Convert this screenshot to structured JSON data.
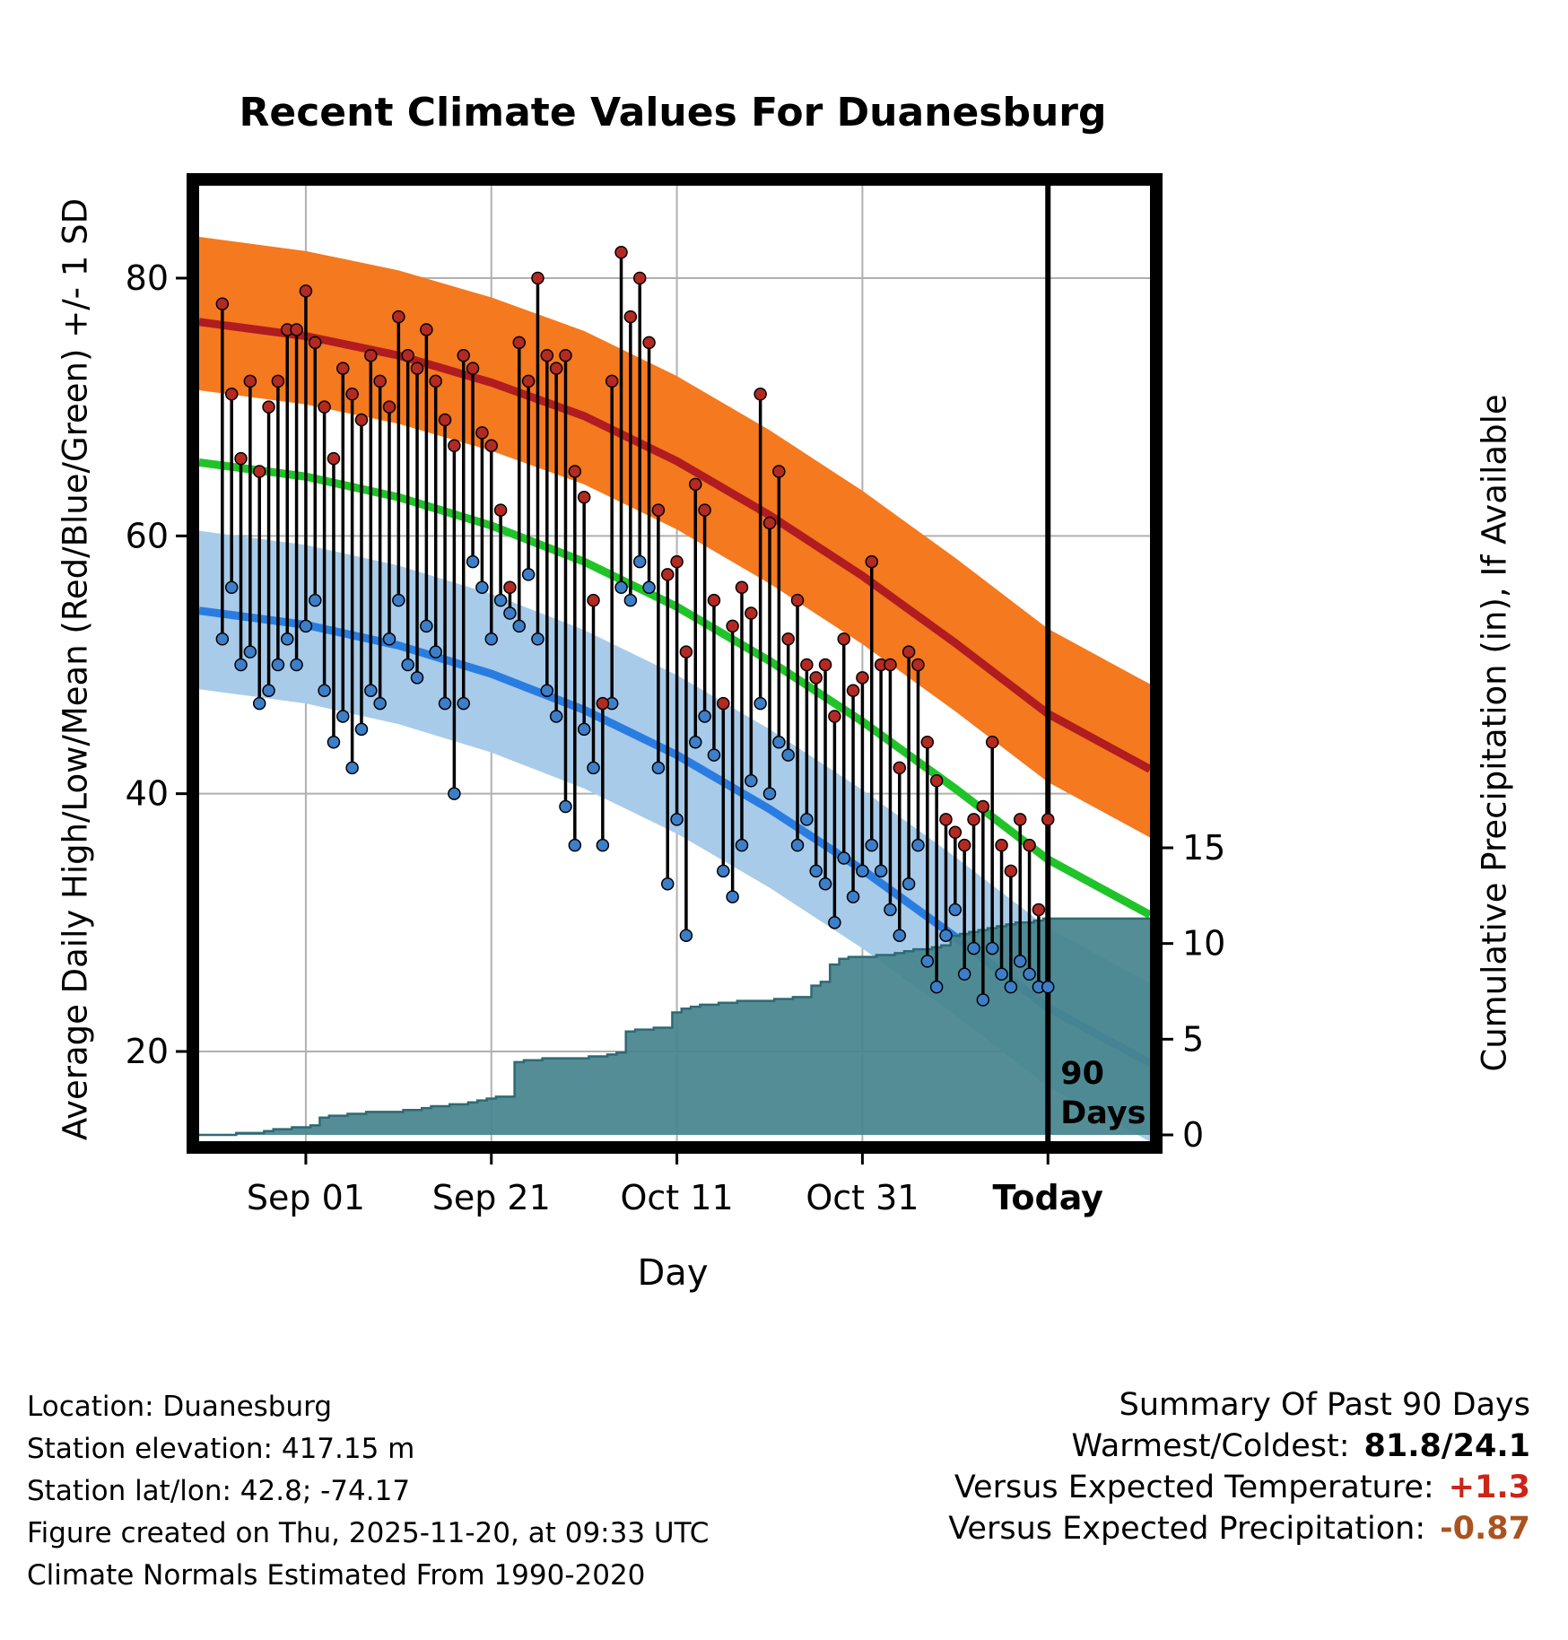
{
  "title": "Recent Climate Values For Duanesburg",
  "axes": {
    "left_label": "Average Daily High/Low/Mean (Red/Blue/Green) +/- 1 SD",
    "right_label": "Cumulative Precipitation (in), If Available",
    "x_label": "Day",
    "left_ticks": [
      20,
      40,
      60,
      80
    ],
    "right_ticks": [
      0,
      5,
      10,
      15
    ],
    "x_ticks": [
      {
        "label": "Sep 01",
        "day": 9,
        "bold": false
      },
      {
        "label": "Sep 21",
        "day": 29,
        "bold": false
      },
      {
        "label": "Oct 11",
        "day": 49,
        "bold": false
      },
      {
        "label": "Oct 31",
        "day": 69,
        "bold": false
      },
      {
        "label": "Today",
        "day": 89,
        "bold": true
      }
    ]
  },
  "annotation": {
    "line1": "90",
    "line2": "Days"
  },
  "footer": {
    "lines": [
      "Location: Duanesburg",
      "Station elevation: 417.15 m",
      "Station lat/lon: 42.8; -74.17",
      "Figure created on Thu, 2025-11-20, at 09:33 UTC",
      "Climate Normals Estimated From 1990-2020"
    ]
  },
  "summary": {
    "title": "Summary Of Past 90 Days",
    "rows": [
      {
        "label": "Warmest/Coldest:",
        "value": "81.8/24.1",
        "color": "#000000"
      },
      {
        "label": "Versus Expected Temperature:",
        "value": "+1.3",
        "color": "#cc2418"
      },
      {
        "label": "Versus Expected Precipitation:",
        "value": "-0.87",
        "color": "#ab5320"
      }
    ]
  },
  "colors": {
    "grid": "#b0b0b0",
    "high_band": "#f4791f",
    "high_line": "#b01c20",
    "low_band": "#a8cbe9",
    "low_line": "#2a7de0",
    "mean_line": "#20c428",
    "precip_fill": "#47848d",
    "precip_edge": "#2d6a75",
    "high_dot": "#b22a22",
    "low_dot": "#3d7ec8",
    "stem": "#000000",
    "frame": "#000000",
    "today_line": "#000000"
  },
  "chart_data": {
    "type": "composite",
    "description": "Daily observed high/low temperature stems with climate-normal bands (high/low mean +/- 1 SD), mean line, and cumulative precipitation step area over the past 90 days",
    "x_axis": {
      "plot_day_range": [
        -2.5,
        100
      ],
      "today_day": 89,
      "num_days": 90
    },
    "y_left": {
      "label": "Temperature",
      "range": [
        13,
        87
      ],
      "ticks": [
        20,
        40,
        60,
        80
      ]
    },
    "y_right": {
      "label": "Cumulative Precipitation (in)",
      "ticks": [
        0,
        5,
        10,
        15
      ]
    },
    "observed": {
      "high": [
        78,
        71,
        66,
        72,
        65,
        70,
        72,
        76,
        76,
        79,
        75,
        70,
        66,
        73,
        71,
        69,
        74,
        72,
        70,
        77,
        74,
        73,
        76,
        72,
        69,
        67,
        74,
        73,
        68,
        67,
        62,
        56,
        75,
        72,
        80,
        74,
        73,
        74,
        65,
        63,
        55,
        47,
        72,
        82,
        77,
        80,
        75,
        62,
        57,
        58,
        51,
        64,
        62,
        55,
        47,
        53,
        56,
        54,
        71,
        61,
        65,
        52,
        55,
        50,
        49,
        50,
        46,
        52,
        48,
        49,
        58,
        50,
        50,
        42,
        51,
        50,
        44,
        41,
        38,
        37,
        36,
        38,
        39,
        44,
        36,
        34,
        38,
        36,
        31,
        38
      ],
      "low": [
        52,
        56,
        50,
        51,
        47,
        48,
        50,
        52,
        50,
        53,
        55,
        48,
        44,
        46,
        42,
        45,
        48,
        47,
        52,
        55,
        50,
        49,
        53,
        51,
        47,
        40,
        47,
        58,
        56,
        52,
        55,
        54,
        53,
        57,
        52,
        48,
        46,
        39,
        36,
        45,
        42,
        36,
        47,
        56,
        55,
        58,
        56,
        42,
        33,
        38,
        29,
        44,
        46,
        43,
        34,
        32,
        36,
        41,
        47,
        40,
        44,
        43,
        36,
        38,
        34,
        33,
        30,
        35,
        32,
        34,
        36,
        34,
        31,
        29,
        33,
        36,
        27,
        25,
        29,
        31,
        26,
        28,
        24,
        28,
        26,
        25,
        27,
        26,
        25,
        25
      ]
    },
    "normals_anchors": {
      "days": [
        -2.5,
        9,
        19,
        29,
        39,
        49,
        59,
        69,
        79,
        89,
        100
      ],
      "high_mean": [
        76.6,
        75.5,
        74.0,
        71.9,
        69.3,
        65.8,
        61.6,
        56.9,
        51.7,
        46.2,
        41.9
      ],
      "high_upper": [
        83.2,
        82.1,
        80.6,
        78.5,
        75.9,
        72.4,
        68.2,
        63.5,
        58.3,
        52.8,
        48.5
      ],
      "high_lower": [
        71.3,
        70.2,
        68.7,
        66.6,
        64.0,
        60.5,
        56.3,
        51.6,
        46.4,
        40.9,
        36.6
      ],
      "mean": [
        65.7,
        64.6,
        63.0,
        60.8,
        58.0,
        54.5,
        50.3,
        45.6,
        40.4,
        34.9,
        30.6
      ],
      "low_mean": [
        54.2,
        53.1,
        51.5,
        49.3,
        46.5,
        43.0,
        38.8,
        34.1,
        28.9,
        23.4,
        19.1
      ],
      "low_upper": [
        60.4,
        59.3,
        57.7,
        55.5,
        52.7,
        49.2,
        45.0,
        40.3,
        35.1,
        29.6,
        25.3
      ],
      "low_lower": [
        48.1,
        47.0,
        45.4,
        43.2,
        40.4,
        36.9,
        32.7,
        28.0,
        22.8,
        17.3,
        13.0
      ]
    },
    "precip_cumulative": {
      "values": [
        0,
        0,
        0.1,
        0.1,
        0.1,
        0.2,
        0.3,
        0.3,
        0.4,
        0.4,
        0.5,
        0.9,
        1.0,
        1.0,
        1.1,
        1.1,
        1.2,
        1.2,
        1.2,
        1.2,
        1.3,
        1.3,
        1.4,
        1.5,
        1.5,
        1.6,
        1.6,
        1.7,
        1.8,
        1.9,
        2.0,
        2.0,
        3.8,
        3.9,
        3.9,
        4.0,
        4.0,
        4.0,
        4.0,
        4.0,
        4.1,
        4.1,
        4.2,
        4.3,
        5.4,
        5.5,
        5.5,
        5.6,
        5.6,
        6.4,
        6.6,
        6.7,
        6.8,
        6.8,
        6.9,
        6.9,
        7.0,
        7.0,
        7.0,
        7.0,
        7.1,
        7.1,
        7.2,
        7.2,
        7.8,
        8.0,
        8.9,
        9.2,
        9.3,
        9.3,
        9.3,
        9.4,
        9.4,
        9.5,
        9.6,
        9.7,
        9.7,
        9.8,
        9.9,
        10.4,
        10.5,
        10.6,
        10.7,
        10.8,
        10.9,
        11.0,
        11.1,
        11.1,
        11.2,
        11.3
      ]
    }
  }
}
